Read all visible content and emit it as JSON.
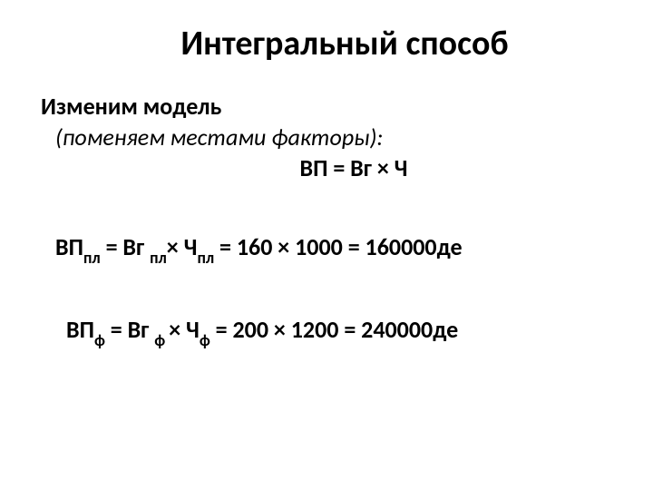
{
  "title": "Интегральный способ",
  "subtitle": "Изменим модель",
  "italic_note": "(поменяем местами факторы):",
  "formula_main": "ВП = Вг × Ч",
  "formula_pl": {
    "vp": "ВП",
    "sub_pl": "пл",
    "eq1": " = Вг ",
    "sub_pl2": "пл",
    "times_ch": "× Ч",
    "sub_pl3": "пл",
    "rest": " = 160 × 1000 = 160000де"
  },
  "formula_f": {
    "vp": "ВП",
    "sub_f": "ф",
    "eq1": " = Вг ",
    "sub_f2": "ф ",
    "times_ch": "× Ч",
    "sub_f3": "ф",
    "rest": " = 200 × 1200 = 240000де"
  }
}
